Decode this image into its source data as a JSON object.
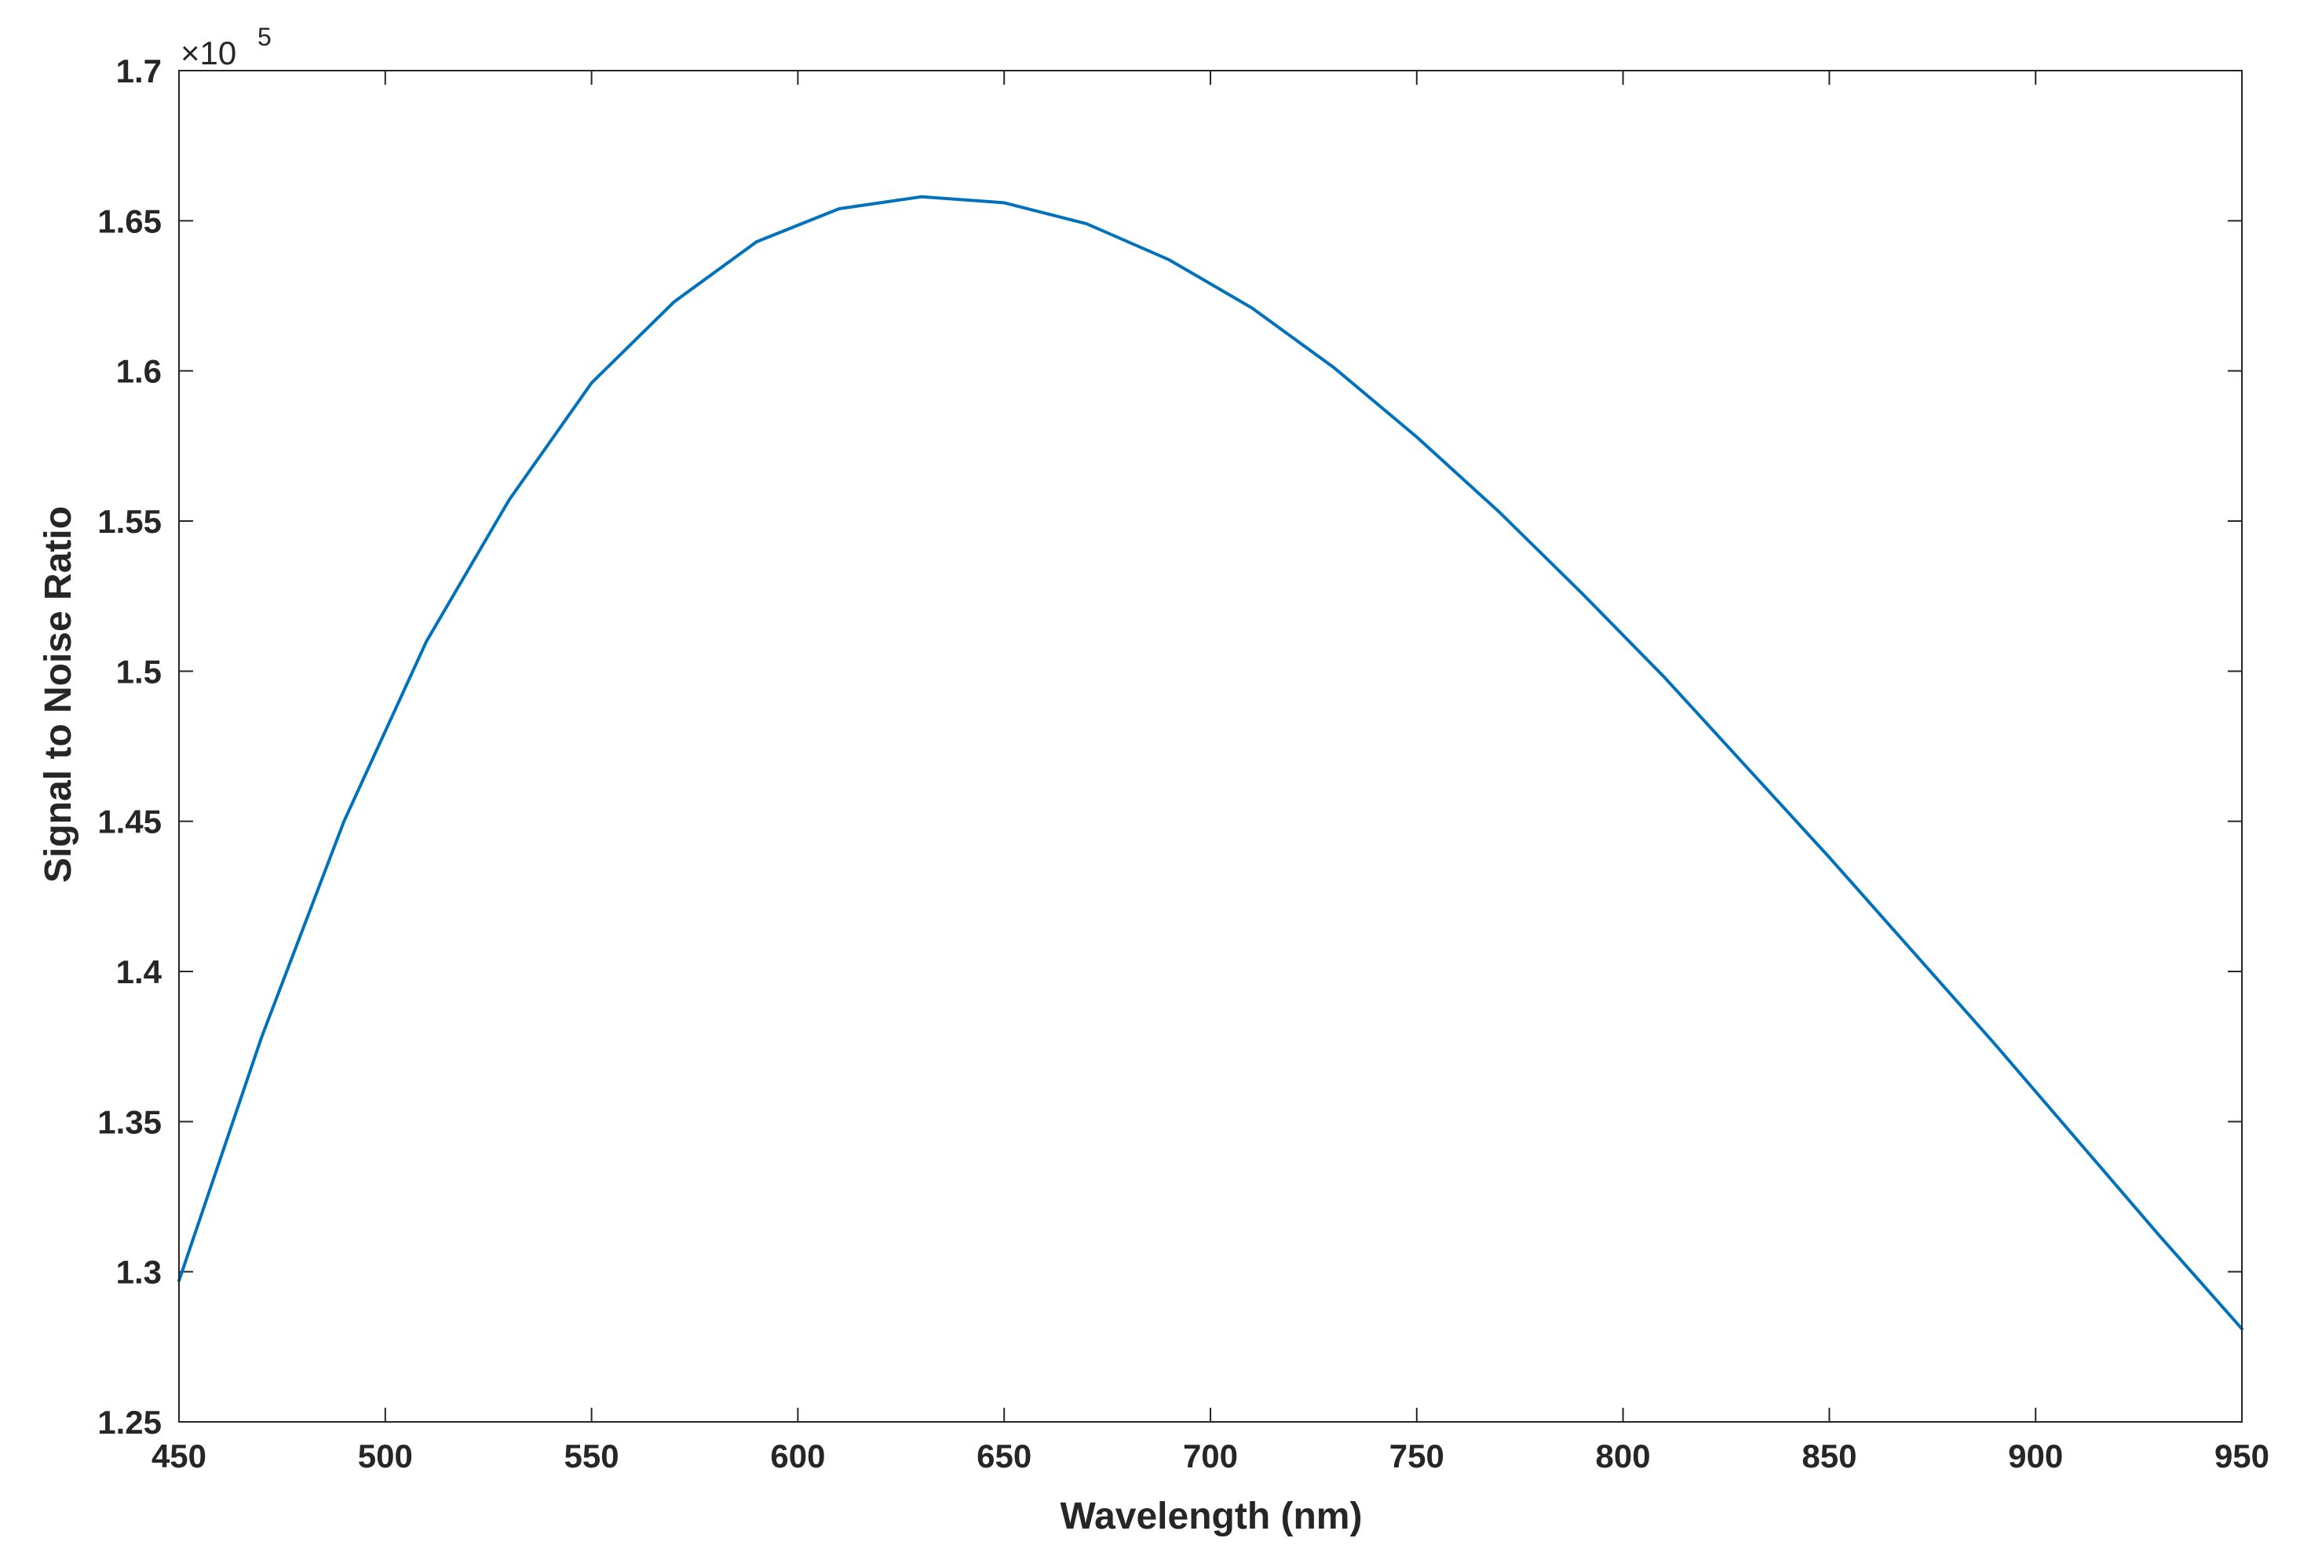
{
  "chart_data": {
    "type": "line",
    "title": "",
    "xlabel": "Wavelength (nm)",
    "ylabel": "Signal to Noise Ratio",
    "xlim": [
      450,
      950
    ],
    "ylim": [
      1.25,
      1.7
    ],
    "y_exponent_label": "×10",
    "y_exponent_power": "5",
    "x_ticks": [
      450,
      500,
      550,
      600,
      650,
      700,
      750,
      800,
      850,
      900,
      950
    ],
    "x_tick_labels": [
      "450",
      "500",
      "550",
      "600",
      "650",
      "700",
      "750",
      "800",
      "850",
      "900",
      "950"
    ],
    "y_ticks": [
      1.25,
      1.3,
      1.35,
      1.4,
      1.45,
      1.5,
      1.55,
      1.6,
      1.65,
      1.7
    ],
    "y_tick_labels": [
      "1.25",
      "1.3",
      "1.35",
      "1.4",
      "1.45",
      "1.5",
      "1.55",
      "1.6",
      "1.65",
      "1.7"
    ],
    "grid": false,
    "box": true,
    "series": [
      {
        "color": "#0072BD",
        "x": [
          450,
          470,
          490,
          510,
          530,
          550,
          570,
          590,
          610,
          630,
          650,
          670,
          690,
          710,
          730,
          750,
          770,
          790,
          810,
          830,
          850,
          870,
          890,
          910,
          930,
          950
        ],
        "y": [
          1.297,
          1.378,
          1.45,
          1.51,
          1.557,
          1.596,
          1.623,
          1.643,
          1.654,
          1.658,
          1.656,
          1.649,
          1.637,
          1.621,
          1.601,
          1.578,
          1.553,
          1.526,
          1.498,
          1.468,
          1.438,
          1.407,
          1.376,
          1.344,
          1.312,
          1.281
        ]
      }
    ]
  }
}
